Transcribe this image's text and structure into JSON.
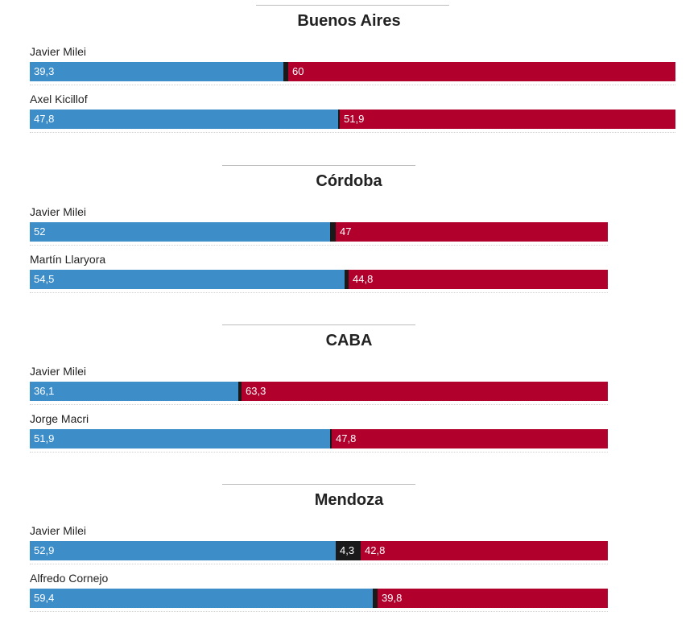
{
  "chart_data": [
    {
      "type": "stacked-bar",
      "title": "Buenos Aires",
      "series_colors": [
        "#3d8dc9",
        "#1a1a1a",
        "#b2002d"
      ],
      "rows": [
        {
          "label": "Javier Milei",
          "values": [
            39.3,
            0.7,
            60
          ],
          "display": [
            "39,3",
            "",
            "60"
          ]
        },
        {
          "label": "Axel Kicillof",
          "values": [
            47.8,
            0.3,
            51.9
          ],
          "display": [
            "47,8",
            "",
            "51,9"
          ]
        }
      ]
    },
    {
      "type": "stacked-bar",
      "title": "Córdoba",
      "series_colors": [
        "#3d8dc9",
        "#1a1a1a",
        "#b2002d"
      ],
      "rows": [
        {
          "label": "Javier Milei",
          "values": [
            52,
            1,
            47
          ],
          "display": [
            "52",
            "",
            "47"
          ]
        },
        {
          "label": "Martín Llaryora",
          "values": [
            54.5,
            0.7,
            44.8
          ],
          "display": [
            "54,5",
            "",
            "44,8"
          ]
        }
      ]
    },
    {
      "type": "stacked-bar",
      "title": "CABA",
      "series_colors": [
        "#3d8dc9",
        "#1a1a1a",
        "#b2002d"
      ],
      "rows": [
        {
          "label": "Javier Milei",
          "values": [
            36.1,
            0.6,
            63.3
          ],
          "display": [
            "36,1",
            "",
            "63,3"
          ]
        },
        {
          "label": "Jorge Macri",
          "values": [
            51.9,
            0.3,
            47.8
          ],
          "display": [
            "51,9",
            "",
            "47,8"
          ]
        }
      ]
    },
    {
      "type": "stacked-bar",
      "title": "Mendoza",
      "series_colors": [
        "#3d8dc9",
        "#1a1a1a",
        "#b2002d"
      ],
      "rows": [
        {
          "label": "Javier Milei",
          "values": [
            52.9,
            4.3,
            42.8
          ],
          "display": [
            "52,9",
            "4,3",
            "42,8"
          ]
        },
        {
          "label": "Alfredo Cornejo",
          "values": [
            59.4,
            0.8,
            39.8
          ],
          "display": [
            "59,4",
            "",
            "39,8"
          ]
        }
      ]
    }
  ]
}
